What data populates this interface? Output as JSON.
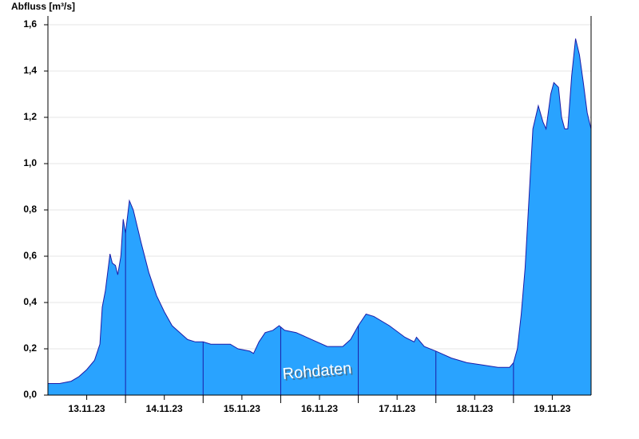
{
  "chart_data": {
    "type": "area",
    "title": "Abfluss [m³/s]",
    "annotation": "Rohdaten",
    "color": "#29a3ff",
    "line_color": "#1c1ca8",
    "grid": true,
    "x": [
      0,
      0.15,
      0.3,
      0.4,
      0.5,
      0.6,
      0.67,
      0.7,
      0.74,
      0.8,
      0.83,
      0.87,
      0.9,
      0.94,
      0.97,
      1.0,
      1.05,
      1.1,
      1.2,
      1.3,
      1.4,
      1.5,
      1.6,
      1.7,
      1.8,
      1.9,
      2.0,
      2.1,
      2.35,
      2.45,
      2.6,
      2.65,
      2.72,
      2.8,
      2.9,
      2.98,
      3.05,
      3.2,
      3.4,
      3.6,
      3.8,
      3.9,
      4.0,
      4.1,
      4.2,
      4.4,
      4.6,
      4.72,
      4.75,
      4.85,
      5.0,
      5.2,
      5.4,
      5.6,
      5.8,
      5.95,
      6.0,
      6.05,
      6.1,
      6.15,
      6.2,
      6.25,
      6.32,
      6.38,
      6.42,
      6.48,
      6.52,
      6.58,
      6.62,
      6.66,
      6.7,
      6.75,
      6.8,
      6.85,
      6.9,
      6.95,
      7.0
    ],
    "values": [
      0.05,
      0.05,
      0.06,
      0.08,
      0.11,
      0.15,
      0.22,
      0.38,
      0.45,
      0.61,
      0.57,
      0.56,
      0.52,
      0.6,
      0.76,
      0.7,
      0.84,
      0.8,
      0.66,
      0.53,
      0.43,
      0.36,
      0.3,
      0.27,
      0.24,
      0.23,
      0.23,
      0.22,
      0.22,
      0.2,
      0.19,
      0.18,
      0.23,
      0.27,
      0.28,
      0.3,
      0.28,
      0.27,
      0.24,
      0.21,
      0.21,
      0.24,
      0.3,
      0.35,
      0.34,
      0.3,
      0.25,
      0.23,
      0.25,
      0.21,
      0.19,
      0.16,
      0.14,
      0.13,
      0.12,
      0.12,
      0.14,
      0.2,
      0.35,
      0.55,
      0.85,
      1.15,
      1.25,
      1.18,
      1.15,
      1.3,
      1.35,
      1.33,
      1.2,
      1.15,
      1.15,
      1.38,
      1.54,
      1.47,
      1.35,
      1.22,
      1.15
    ],
    "xlim": [
      0,
      7
    ],
    "xticks": [
      {
        "value": 0.5,
        "label": "13.11.23"
      },
      {
        "value": 1.5,
        "label": "14.11.23"
      },
      {
        "value": 2.5,
        "label": "15.11.23"
      },
      {
        "value": 3.5,
        "label": "16.11.23"
      },
      {
        "value": 4.5,
        "label": "17.11.23"
      },
      {
        "value": 5.5,
        "label": "18.11.23"
      },
      {
        "value": 6.5,
        "label": "19.11.23"
      }
    ],
    "xgridlines": [
      1,
      2,
      3,
      4,
      5,
      6
    ],
    "ylim": [
      0,
      1.6
    ],
    "yticks": [
      {
        "value": 0,
        "label": "0,0"
      },
      {
        "value": 0.2,
        "label": "0,2"
      },
      {
        "value": 0.4,
        "label": "0,4"
      },
      {
        "value": 0.6,
        "label": "0,6"
      },
      {
        "value": 0.8,
        "label": "0,8"
      },
      {
        "value": 1.0,
        "label": "1,0"
      },
      {
        "value": 1.2,
        "label": "1,2"
      },
      {
        "value": 1.4,
        "label": "1,4"
      },
      {
        "value": 1.6,
        "label": "1,6"
      }
    ]
  }
}
